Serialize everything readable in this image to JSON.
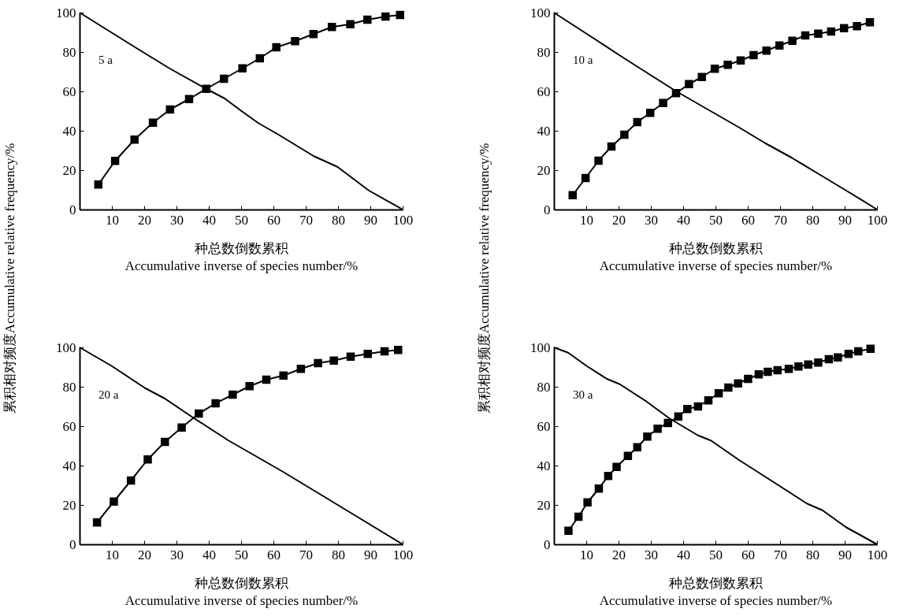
{
  "chart_data": [
    {
      "type": "line",
      "xlabel": "种总数倒数累积\nAccumulative inverse  of species number/%",
      "ylabel": "累积相对频度Accumulative relative frequency/%",
      "annotations": [
        "5 a"
      ],
      "xlim": [
        0,
        100
      ],
      "ylim": [
        0,
        100
      ],
      "xticks": [
        10,
        20,
        30,
        40,
        50,
        60,
        70,
        80,
        90,
        100
      ],
      "yticks": [
        0,
        20,
        40,
        60,
        80,
        100
      ],
      "grid": false,
      "series": [
        {
          "color": "#000000",
          "marker": "square",
          "x": [
            5.8,
            11.0,
            17.0,
            22.7,
            28.0,
            33.9,
            39.2,
            44.7,
            50.4,
            55.8,
            60.9,
            66.7,
            72.4,
            78.1,
            83.8,
            89.1,
            94.7,
            99.2
          ],
          "values": [
            12.7,
            24.7,
            35.5,
            44.1,
            50.8,
            56.1,
            61.3,
            66.4,
            71.7,
            76.8,
            82.4,
            85.5,
            89.1,
            92.7,
            94.1,
            96.4,
            98.0,
            98.8
          ]
        },
        {
          "color": "#000000",
          "marker": "none",
          "x": [
            0,
            16.5,
            27.8,
            39.2,
            44.9,
            49.8,
            55.5,
            61.2,
            72.5,
            79.8,
            89.5,
            100
          ],
          "values": [
            100,
            83.1,
            71.7,
            61.3,
            56.4,
            50.4,
            43.7,
            38.4,
            27.1,
            21.7,
            9.7,
            0
          ]
        }
      ]
    },
    {
      "type": "line",
      "xlabel": "种总数倒数累积\nAccumulative inverse  of species number/%",
      "ylabel": "累积相对频度Accumulative relative frequency/%",
      "annotations": [
        "10 a"
      ],
      "xlim": [
        0,
        100
      ],
      "ylim": [
        0,
        100
      ],
      "xticks": [
        10,
        20,
        30,
        40,
        50,
        60,
        70,
        80,
        90,
        100
      ],
      "yticks": [
        0,
        20,
        40,
        60,
        80,
        100
      ],
      "grid": false,
      "series": [
        {
          "color": "#000000",
          "marker": "square",
          "x": [
            5.8,
            9.8,
            13.8,
            17.8,
            21.8,
            25.8,
            29.8,
            33.8,
            37.8,
            41.8,
            45.8,
            49.8,
            53.8,
            57.8,
            61.8,
            65.8,
            69.8,
            73.8,
            77.8,
            81.8,
            85.8,
            89.8,
            93.8,
            97.8
          ],
          "values": [
            7.3,
            16.0,
            24.8,
            32.0,
            38.0,
            44.4,
            49.1,
            54.1,
            59.1,
            63.7,
            67.3,
            71.5,
            73.5,
            75.7,
            78.4,
            80.7,
            83.3,
            85.7,
            88.4,
            89.3,
            90.4,
            92.1,
            93.1,
            95.1
          ]
        },
        {
          "color": "#000000",
          "marker": "none",
          "x": [
            0,
            12.8,
            20.9,
            29.8,
            37.9,
            45.2,
            57.3,
            65.4,
            73.5,
            81.6,
            89.7,
            97,
            100
          ],
          "values": [
            100,
            86.4,
            77.7,
            68.4,
            60,
            53.1,
            41.7,
            33.7,
            26.4,
            18.4,
            10.4,
            3.1,
            0
          ]
        }
      ]
    },
    {
      "type": "line",
      "xlabel": "种总数倒数累积\nAccumulative inverse  of species number/%",
      "annotations": [
        "20 a"
      ],
      "xlim": [
        0,
        100
      ],
      "ylim": [
        0,
        100
      ],
      "xticks": [
        10,
        20,
        30,
        40,
        50,
        60,
        70,
        80,
        90,
        100
      ],
      "yticks": [
        0,
        20,
        40,
        60,
        80,
        100
      ],
      "grid": false,
      "series": [
        {
          "color": "#000000",
          "marker": "square",
          "x": [
            5.4,
            10.6,
            15.9,
            21.1,
            26.4,
            31.6,
            36.9,
            42.1,
            47.4,
            52.6,
            57.8,
            63.1,
            68.5,
            73.8,
            78.7,
            83.9,
            89.2,
            94.4,
            98.6
          ],
          "values": [
            11.1,
            21.7,
            32.4,
            43.1,
            52.0,
            59.3,
            66.4,
            71.6,
            76.0,
            80.3,
            83.6,
            85.7,
            89.1,
            92.0,
            93.3,
            95.3,
            96.7,
            98.0,
            98.7
          ]
        },
        {
          "color": "#000000",
          "marker": "none",
          "x": [
            0,
            9.8,
            20.3,
            26.4,
            34.8,
            46.1,
            57.5,
            63.1,
            79.2,
            100
          ],
          "values": [
            100,
            90.7,
            79.3,
            74,
            64.7,
            52.7,
            42,
            36.7,
            20.7,
            0
          ]
        }
      ]
    },
    {
      "type": "line",
      "xlabel": "种总数倒数累积\nAccumulative inverse  of species number/%",
      "annotations": [
        "30 a"
      ],
      "xlim": [
        0,
        100
      ],
      "ylim": [
        0,
        100
      ],
      "xticks": [
        10,
        20,
        30,
        40,
        50,
        60,
        70,
        80,
        90,
        100
      ],
      "yticks": [
        0,
        20,
        40,
        60,
        80,
        100
      ],
      "grid": false,
      "series": [
        {
          "color": "#000000",
          "marker": "square",
          "x": [
            4.5,
            7.6,
            10.4,
            13.9,
            16.8,
            19.4,
            22.9,
            25.8,
            28.9,
            32.1,
            35.3,
            38.5,
            41.3,
            44.6,
            47.8,
            51.0,
            54.0,
            57.0,
            60.1,
            63.4,
            66.2,
            69.2,
            72.7,
            75.7,
            78.7,
            81.8,
            85.1,
            87.9,
            91.2,
            94.2,
            98.0
          ],
          "values": [
            6.9,
            14.0,
            21.3,
            28.3,
            34.7,
            39.3,
            44.9,
            49.3,
            54.7,
            58.7,
            61.6,
            64.9,
            68.7,
            70.0,
            73.1,
            76.7,
            79.6,
            81.7,
            84.0,
            86.3,
            87.6,
            88.4,
            89.1,
            90.3,
            91.3,
            92.3,
            94.0,
            94.9,
            96.7,
            98.0,
            99.3
          ]
        },
        {
          "color": "#000000",
          "marker": "none",
          "x": [
            0,
            4.4,
            10,
            16.4,
            20.4,
            28.5,
            35.7,
            44.6,
            48.6,
            57.4,
            69.5,
            78.3,
            83.1,
            90.4,
            100
          ],
          "values": [
            100,
            97.3,
            90.7,
            84,
            81.3,
            72.7,
            64,
            55.3,
            52.7,
            42.7,
            30,
            20.7,
            17.3,
            8.7,
            0
          ]
        }
      ]
    }
  ]
}
